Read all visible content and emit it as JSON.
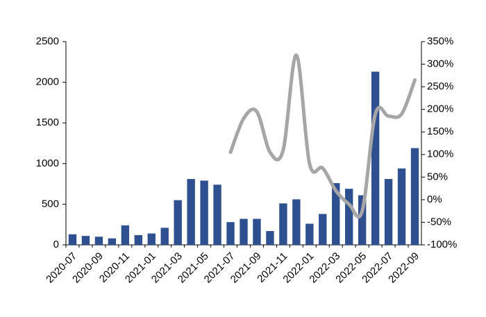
{
  "chart_data": {
    "type": "bar-line",
    "categories": [
      "2020-07",
      null,
      "2020-09",
      null,
      "2020-11",
      null,
      "2021-01",
      null,
      "2021-03",
      null,
      "2021-05",
      null,
      "2021-07",
      null,
      "2021-09",
      null,
      "2021-11",
      null,
      "2022-01",
      null,
      "2022-03",
      null,
      "2022-05",
      null,
      "2022-07",
      null,
      "2022-09"
    ],
    "series": [
      {
        "type": "bar",
        "color": "#2e5090",
        "values": [
          130,
          110,
          100,
          80,
          240,
          120,
          140,
          210,
          550,
          810,
          790,
          740,
          280,
          320,
          320,
          170,
          510,
          560,
          260,
          380,
          760,
          690,
          610,
          2130,
          810,
          940,
          1190
        ]
      },
      {
        "type": "line",
        "axis": "y2",
        "color": "#a6a6a6",
        "values": [
          null,
          null,
          null,
          null,
          null,
          null,
          null,
          null,
          null,
          null,
          null,
          null,
          105,
          180,
          195,
          105,
          110,
          320,
          80,
          70,
          20,
          -10,
          -25,
          190,
          185,
          190,
          265
        ]
      }
    ],
    "ylim": [
      0,
      2500
    ],
    "yticks": [
      0,
      500,
      1000,
      1500,
      2000,
      2500
    ],
    "y2lim": [
      -100,
      350
    ],
    "y2ticks": [
      {
        "value": -100,
        "label": "-100%"
      },
      {
        "value": -50,
        "label": "-50%"
      },
      {
        "value": 0,
        "label": "0%"
      },
      {
        "value": 50,
        "label": "50%"
      },
      {
        "value": 100,
        "label": "100%"
      },
      {
        "value": 150,
        "label": "150%"
      },
      {
        "value": 200,
        "label": "200%"
      },
      {
        "value": 250,
        "label": "250%"
      },
      {
        "value": 300,
        "label": "300%"
      },
      {
        "value": 350,
        "label": "350%"
      }
    ],
    "grid": false
  }
}
